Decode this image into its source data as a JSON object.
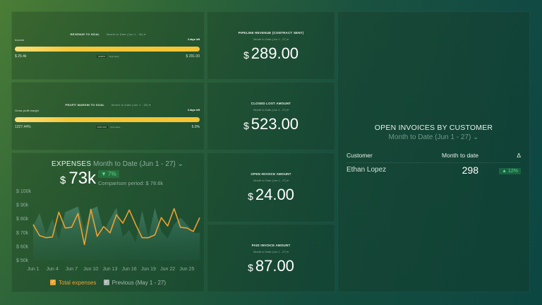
{
  "colors": {
    "accent_orange": "#f0a030",
    "goal_bar": "#f4c434",
    "positive": "#5ed38a",
    "muted_text": "#8fae9e"
  },
  "revenue_goal": {
    "title": "REVENUE TO GOAL",
    "period": "Month to Date (Jun 1 - 30) ▾",
    "metric_label": "Income",
    "days_left": "3 days left",
    "start_value": "$ 25.4k",
    "mid_chip": "$76873",
    "mid_text": "Goal value",
    "end_value": "$ 291.00"
  },
  "profit_goal": {
    "title": "PROFIT MARGIN TO GOAL",
    "period": "Month to Date (Jun 1 - 30) ▾",
    "metric_label": "Gross profit margin",
    "days_left": "3 days left",
    "start_value": "1227.44%",
    "mid_chip": "0000.00%",
    "mid_text": "Goal value",
    "end_value": "6.0%"
  },
  "metrics": [
    {
      "title": "PIPELINE REVENUE (CONTRACT SENT)",
      "period": "Month to Date (Jun 1 - 27) ▾",
      "currency": "$",
      "value": "289.00"
    },
    {
      "title": "CLOSED LOST AMOUNT",
      "period": "Month to Date (Jun 1 - 27) ▾",
      "currency": "$",
      "value": "523.00"
    },
    {
      "title": "OPEN INVOICE AMOUNT",
      "period": "Month to Date (Jun 1 - 27) ▾",
      "currency": "$",
      "value": "24.00"
    },
    {
      "title": "PAID INVOICE AMOUNT",
      "period": "Month to Date (Jun 1 - 27) ▾",
      "currency": "$",
      "value": "87.00"
    }
  ],
  "expenses": {
    "title": "EXPENSES",
    "period": "Month to Date (Jun 1 - 27) ⌄",
    "currency": "$",
    "value": "73k",
    "change_badge": "▼ 7%",
    "comparison": "Comparison period: $ 78.6k",
    "legend_current": "Total expenses",
    "legend_previous": "Previous (May 1 - 27)"
  },
  "open_invoices": {
    "title": "OPEN INVOICES BY CUSTOMER",
    "period": "Month to Date (Jun 1 - 27) ⌄",
    "columns": [
      "Customer",
      "Month to date",
      "Δ"
    ],
    "rows": [
      {
        "customer": "Ethan Lopez",
        "value": "298",
        "delta": "▲ 12%"
      }
    ]
  },
  "chart_data": {
    "type": "line",
    "title": "EXPENSES",
    "xlabel": "",
    "ylabel": "",
    "ylim": [
      50000,
      100000
    ],
    "y_ticks": [
      "$ 50k",
      "$ 60k",
      "$ 70k",
      "$ 80k",
      "$ 90k",
      "$ 100k"
    ],
    "x_tick_labels": [
      "Jun 1",
      "Jun 4",
      "Jun 7",
      "Jun 10",
      "Jun 13",
      "Jun 16",
      "Jun 19",
      "Jun 22",
      "Jun 25"
    ],
    "x": [
      "Jun 1",
      "Jun 2",
      "Jun 3",
      "Jun 4",
      "Jun 5",
      "Jun 6",
      "Jun 7",
      "Jun 8",
      "Jun 9",
      "Jun 10",
      "Jun 11",
      "Jun 12",
      "Jun 13",
      "Jun 14",
      "Jun 15",
      "Jun 16",
      "Jun 17",
      "Jun 18",
      "Jun 19",
      "Jun 20",
      "Jun 21",
      "Jun 22",
      "Jun 23",
      "Jun 24",
      "Jun 25",
      "Jun 26",
      "Jun 27"
    ],
    "series": [
      {
        "name": "Total expenses",
        "type": "line",
        "color": "#f0a030",
        "values": [
          76000,
          68000,
          66500,
          67000,
          85000,
          73500,
          74000,
          84000,
          61500,
          87000,
          67500,
          74500,
          70000,
          83000,
          77000,
          86500,
          76000,
          66500,
          66500,
          68500,
          81000,
          75000,
          87500,
          74000,
          73500,
          71000,
          81000
        ]
      },
      {
        "name": "Previous (May 1 - 27)",
        "type": "area",
        "color": "#4a8a7a",
        "values": [
          75000,
          84000,
          69000,
          80000,
          65000,
          85000,
          87000,
          89000,
          72000,
          87000,
          89000,
          71000,
          80000,
          88000,
          67000,
          72000,
          63000,
          86000,
          67000,
          88000,
          71000,
          66000,
          76000,
          81000,
          76000,
          70000,
          70000
        ]
      }
    ],
    "legend_position": "bottom",
    "grid": false
  }
}
